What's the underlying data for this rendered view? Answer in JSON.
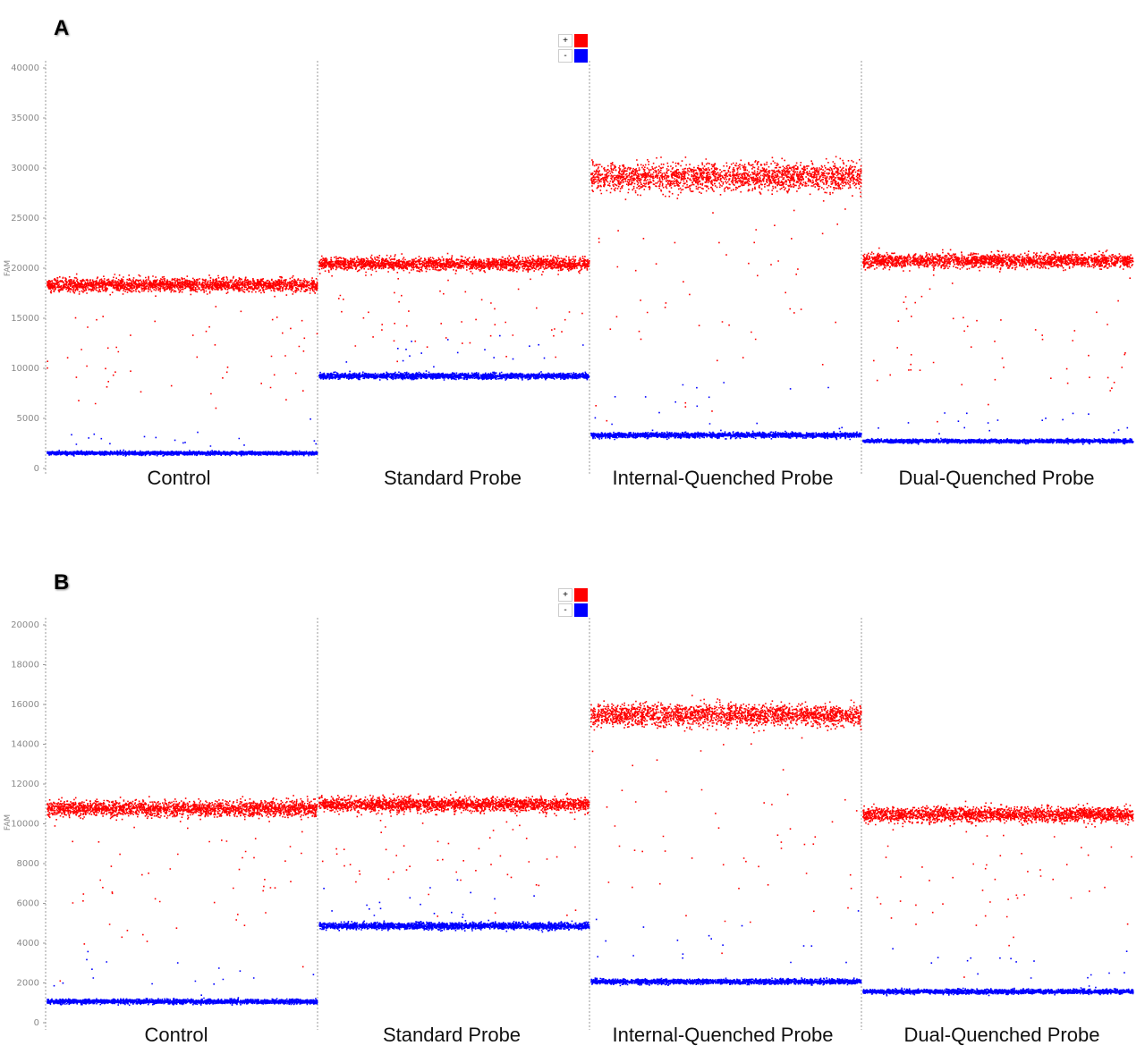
{
  "panels": [
    {
      "letter": "A",
      "ylabel": "FAM",
      "yticks": [
        0,
        5000,
        10000,
        15000,
        20000,
        25000,
        30000,
        35000,
        40000
      ],
      "ylim": [
        0,
        40000
      ],
      "legend": [
        {
          "symbol": "+",
          "color": "#ff0000"
        },
        {
          "symbol": "-",
          "color": "#0000ff"
        }
      ]
    },
    {
      "letter": "B",
      "ylabel": "FAM",
      "yticks": [
        0,
        2000,
        4000,
        6000,
        8000,
        10000,
        12000,
        14000,
        16000,
        18000,
        20000
      ],
      "ylim": [
        0,
        20000
      ],
      "legend": [
        {
          "symbol": "+",
          "color": "#ff0000"
        },
        {
          "symbol": "-",
          "color": "#0000ff"
        }
      ]
    }
  ],
  "chart_data": [
    {
      "type": "scatter",
      "title": "",
      "xlabel": "",
      "ylabel": "FAM",
      "ylim": [
        0,
        40000
      ],
      "categories": [
        "Control",
        "Standard Probe",
        "Internal-Quenched Probe",
        "Dual-Quenched Probe"
      ],
      "series": [
        {
          "name": "+",
          "color": "#ff0000",
          "center": [
            18400,
            20500,
            29200,
            20800
          ],
          "spread": [
            600,
            550,
            1200,
            600
          ]
        },
        {
          "name": "-",
          "color": "#0000ff",
          "center": [
            1600,
            9300,
            3400,
            2800
          ],
          "spread": [
            150,
            250,
            220,
            160
          ]
        }
      ],
      "grid": false,
      "legend_position": "top-center"
    },
    {
      "type": "scatter",
      "title": "",
      "xlabel": "",
      "ylabel": "FAM",
      "ylim": [
        0,
        20000
      ],
      "categories": [
        "Control",
        "Standard Probe",
        "Internal-Quenched Probe",
        "Dual-Quenched Probe"
      ],
      "series": [
        {
          "name": "+",
          "color": "#ff0000",
          "center": [
            10800,
            11000,
            15500,
            10500
          ],
          "spread": [
            350,
            320,
            500,
            330
          ]
        },
        {
          "name": "-",
          "color": "#0000ff",
          "center": [
            1100,
            4900,
            2100,
            1600
          ],
          "spread": [
            100,
            150,
            110,
            100
          ]
        }
      ],
      "grid": false,
      "legend_position": "top-center"
    }
  ]
}
